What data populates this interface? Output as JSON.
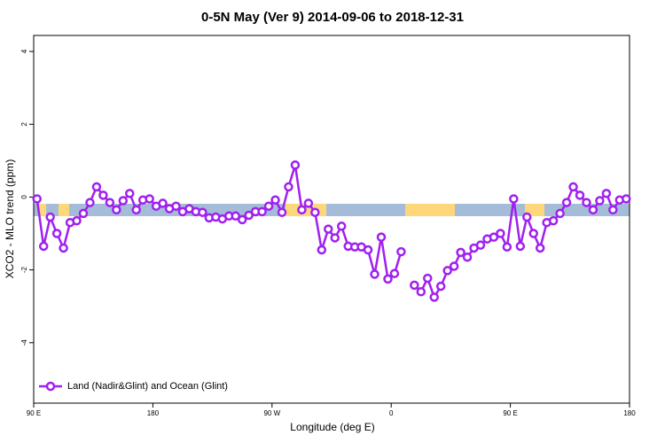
{
  "chart_data": {
    "type": "line",
    "title": "0-5N May (Ver 9)   2014-09-06 to 2018-12-31",
    "x_label": "Longitude (deg E)",
    "y_label": "XCO2 - MLO trend (ppm)",
    "xlim": [
      90,
      540
    ],
    "ylim": [
      -5.66,
      4.44
    ],
    "xticks": [
      {
        "value": 90,
        "label": "90 E"
      },
      180,
      {
        "value": 270,
        "label": "90 W"
      },
      {
        "value": 360,
        "label": "0"
      },
      {
        "value": 450,
        "label": "90 E"
      },
      {
        "value": 540,
        "label": "180"
      }
    ],
    "yticks": [
      -4,
      -2,
      0,
      2,
      4
    ],
    "legend": "bottom-left",
    "x": [
      92.5,
      97.5,
      102.5,
      107.5,
      112.5,
      117.5,
      122.5,
      127.5,
      132.5,
      137.5,
      142.5,
      147.5,
      152.5,
      157.5,
      162.5,
      167.5,
      172.5,
      177.5,
      182.5,
      187.5,
      192.5,
      197.5,
      202.5,
      207.5,
      212.5,
      217.5,
      222.5,
      227.5,
      232.5,
      237.5,
      242.5,
      247.5,
      252.5,
      257.5,
      262.5,
      267.5,
      272.5,
      277.5,
      282.5,
      287.5,
      292.5,
      297.5,
      302.5,
      307.5,
      312.5,
      317.5,
      322.5,
      327.5,
      332.5,
      337.5,
      342.5,
      347.5,
      352.5,
      357.5,
      362.5,
      367.5,
      372.5,
      377.5,
      382.5,
      387.5,
      392.5,
      397.5,
      402.5,
      407.5,
      412.5,
      417.5,
      422.5,
      427.5,
      432.5,
      437.5,
      442.5,
      447.5,
      452.5,
      457.5,
      462.5,
      467.5,
      472.5,
      477.5,
      482.5,
      487.5,
      492.5,
      497.5,
      502.5,
      507.5,
      512.5,
      517.5,
      522.5,
      527.5,
      532.5,
      537.5
    ],
    "series": [
      {
        "name": "Land (Nadir&Glint) and Ocean (Glint)",
        "color": "#a020f0",
        "values": [
          -0.05,
          -1.35,
          -0.55,
          -1.0,
          -1.4,
          -0.7,
          -0.65,
          -0.45,
          -0.15,
          0.28,
          0.05,
          -0.15,
          -0.35,
          -0.1,
          0.1,
          -0.35,
          -0.08,
          -0.05,
          -0.25,
          -0.17,
          -0.32,
          -0.25,
          -0.4,
          -0.32,
          -0.4,
          -0.42,
          -0.57,
          -0.55,
          -0.6,
          -0.52,
          -0.52,
          -0.62,
          -0.5,
          -0.4,
          -0.4,
          -0.25,
          -0.08,
          -0.42,
          0.28,
          0.88,
          -0.35,
          -0.17,
          -0.42,
          -1.45,
          -0.88,
          -1.12,
          -0.8,
          -1.35,
          -1.37,
          -1.37,
          -1.45,
          -2.12,
          -1.1,
          -2.25,
          -2.1,
          -1.5,
          null,
          -2.42,
          -2.6,
          -2.23,
          -2.75,
          -2.45,
          -2.02,
          -1.9,
          -1.52,
          -1.65,
          -1.4,
          -1.32,
          -1.15,
          -1.1,
          -1.0,
          -1.37,
          -0.05,
          -1.35,
          -0.55,
          -1.0,
          -1.4,
          -0.7,
          -0.65,
          -0.45,
          -0.15,
          0.28,
          0.05,
          -0.15,
          -0.35,
          -0.1,
          0.1,
          -0.35,
          -0.08,
          -0.05
        ]
      }
    ]
  }
}
